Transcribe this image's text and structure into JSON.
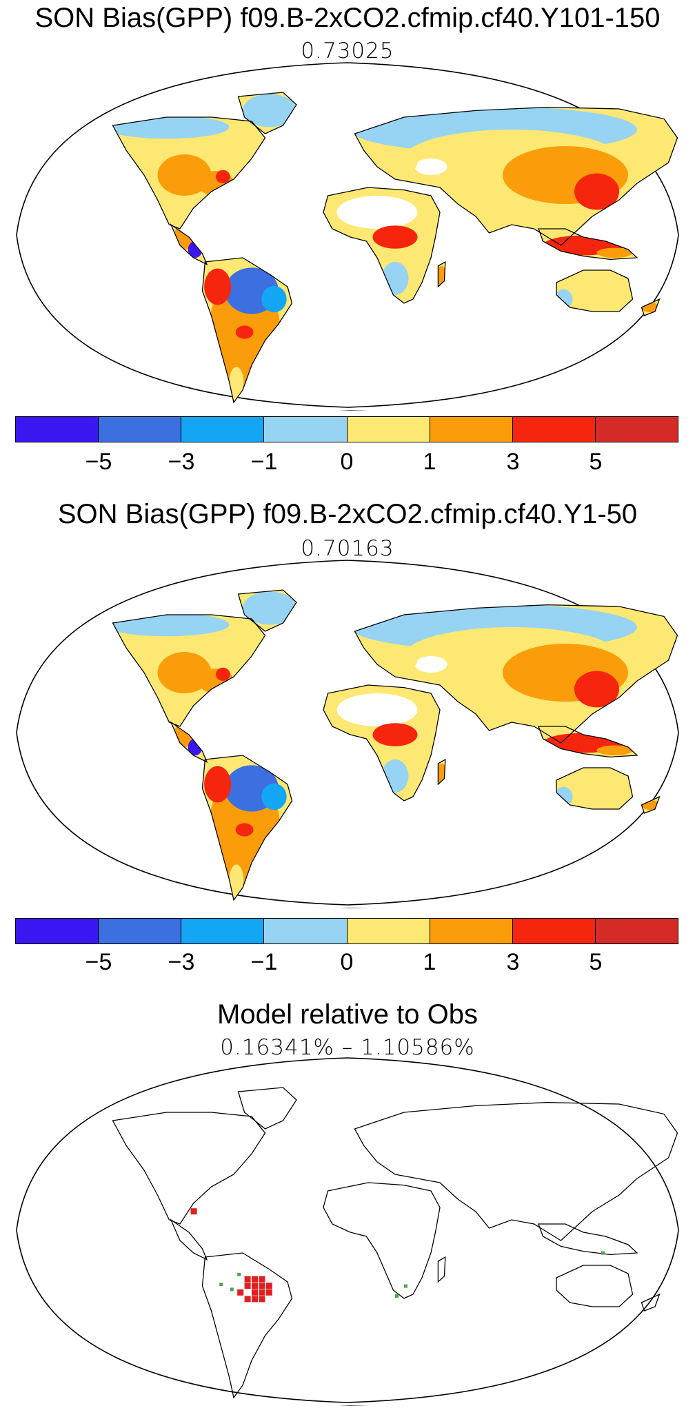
{
  "panels": [
    {
      "title": "SON Bias(GPP) f09.B-2xCO2.cfmip.cf40.Y101-150",
      "value": "0.73025"
    },
    {
      "title": "SON Bias(GPP) f09.B-2xCO2.cfmip.cf40.Y1-50",
      "value": "0.70163"
    },
    {
      "title": "Model relative to Obs",
      "value": "0.16341% – 1.10586%"
    }
  ],
  "colorbar": {
    "colors": [
      "#3a17f0",
      "#3c6fe0",
      "#12a6f5",
      "#97d3f2",
      "#fde873",
      "#fb9d0a",
      "#f6250d",
      "#d42b27"
    ],
    "tick_labels": [
      "−5",
      "−3",
      "−1",
      "0",
      "1",
      "3",
      "5"
    ]
  },
  "legend_colors": {
    "positive_bias": "#e02020",
    "negative_bias": "#4ca64c"
  }
}
